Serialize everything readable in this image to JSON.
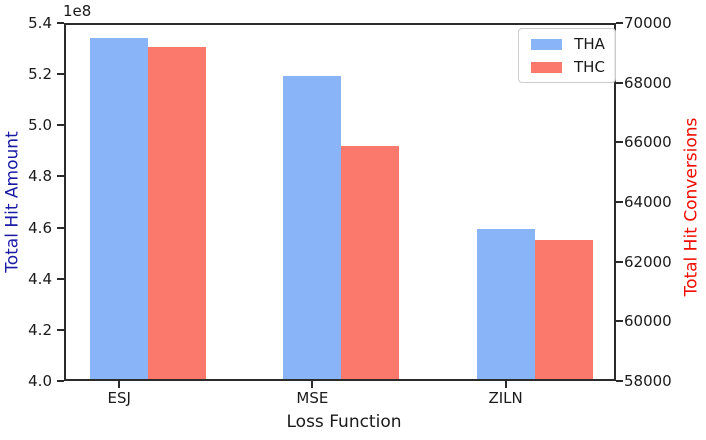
{
  "chart_data": {
    "type": "bar",
    "title": "",
    "offset_text": "1e8",
    "xlabel": "Loss Function",
    "categories": [
      "ESJ",
      "MSE",
      "ZILN"
    ],
    "left_axis": {
      "label": "Total Hit Amount",
      "color": "#1a1aa6",
      "min": 400000000,
      "max": 540000000,
      "ticks": [
        "4.0",
        "4.2",
        "4.4",
        "4.6",
        "4.8",
        "5.0",
        "5.2",
        "5.4"
      ]
    },
    "right_axis": {
      "label": "Total Hit Conversions",
      "color": "#f00c00",
      "min": 58000,
      "max": 70000,
      "ticks": [
        "58000",
        "60000",
        "62000",
        "64000",
        "66000",
        "68000",
        "70000"
      ]
    },
    "series": [
      {
        "name": "THA",
        "axis": "left",
        "color": "#8ab4f8",
        "values": [
          535000000,
          520000000,
          459500000
        ]
      },
      {
        "name": "THC",
        "axis": "right",
        "color": "#fb786d",
        "values": [
          69250,
          65900,
          62700
        ]
      }
    ],
    "legend": {
      "position": "upper right",
      "items": [
        "THA",
        "THC"
      ]
    },
    "grid": false
  }
}
